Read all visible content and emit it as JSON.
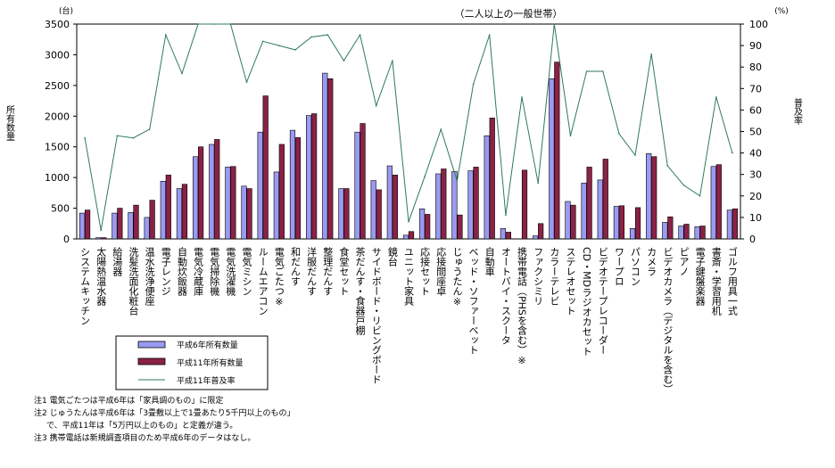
{
  "chart_data": {
    "type": "bar",
    "title": "（二人以上の一般世帯）",
    "left_axis": {
      "unit": "(台)",
      "title": "所有数量",
      "ylim": [
        0,
        3500
      ],
      "ticks": [
        "0",
        "500",
        "1000",
        "1500",
        "2000",
        "2500",
        "3000",
        "3500"
      ]
    },
    "right_axis": {
      "unit": "(%)",
      "title": "普及率",
      "ylim": [
        0,
        100
      ],
      "ticks": [
        "0",
        "10",
        "20",
        "30",
        "40",
        "50",
        "60",
        "70",
        "80",
        "90",
        "100"
      ]
    },
    "categories": [
      "システムキッチン",
      "太陽熱温水器",
      "給湯器",
      "洗髪洗面化粧台",
      "温水洗浄便座",
      "電子レンジ",
      "自動炊飯器",
      "電気冷蔵庫",
      "電気掃除機",
      "電気洗濯機",
      "電気ミシン",
      "ルームエアコン",
      "電気ごたつ※",
      "和だんす",
      "洋服だんす",
      "整理だんす",
      "食堂セット",
      "茶だんす・食器戸棚",
      "サイドボード・リビングボード",
      "鏡台",
      "ユニット家具",
      "応接セット",
      "応接間座卓",
      "じゅうたん※",
      "ベッド・ソファーベット",
      "自動車",
      "オートバイ・スクータ",
      "携帯電話（PHSを含む）※",
      "ファクシミリ",
      "カラーテレビ",
      "ステレオセット",
      "CD・MDラジオカセット",
      "ビデオテープレコーダー",
      "ワープロ",
      "パソコン",
      "カメラ",
      "ビデオカメラ（デジタルを含む）",
      "ピアノ",
      "電子鍵盤楽器",
      "書斎・学習用机",
      "ゴルフ用具一式"
    ],
    "series": [
      {
        "name": "平成6年所有数量",
        "kind": "bar",
        "axis": "left",
        "color": "#9a9af2",
        "values": [
          420,
          20,
          420,
          430,
          350,
          940,
          820,
          1340,
          1540,
          1170,
          860,
          1740,
          1090,
          1770,
          2010,
          2700,
          820,
          1740,
          950,
          1190,
          60,
          490,
          1060,
          1100,
          1110,
          1680,
          170,
          0,
          50,
          2610,
          610,
          910,
          960,
          530,
          170,
          1390,
          270,
          210,
          200,
          1180,
          470
        ]
      },
      {
        "name": "平成11年所有数量",
        "kind": "bar",
        "axis": "left",
        "color": "#8a2246",
        "values": [
          470,
          20,
          500,
          550,
          630,
          1040,
          890,
          1500,
          1620,
          1180,
          820,
          2330,
          1540,
          1650,
          2040,
          2610,
          820,
          1880,
          800,
          1040,
          120,
          400,
          1140,
          390,
          1170,
          1970,
          110,
          1120,
          250,
          2880,
          550,
          1170,
          1300,
          540,
          510,
          1340,
          360,
          240,
          210,
          1210,
          490
        ]
      },
      {
        "name": "平成11年普及率",
        "kind": "line",
        "axis": "right",
        "color": "#2f7a5a",
        "values": [
          47,
          4,
          48,
          47,
          51,
          95,
          77,
          100,
          100,
          100,
          73,
          92,
          90,
          88,
          94,
          95,
          83,
          95,
          62,
          83,
          8,
          29,
          51,
          27,
          72,
          95,
          11,
          66,
          26,
          100,
          48,
          78,
          78,
          49,
          39,
          86,
          34,
          25,
          20,
          66,
          40
        ]
      }
    ],
    "notes": [
      "注1 電気ごたつは平成6年は「家具調のもの」に限定",
      "注2 じゅうたんは平成6年は「3畳敷以上で1畳あたり5千円以上のもの」",
      "で、平成11年は「5万円以上のもの」と定義が違う。",
      "注3 携帯電話は新規調査項目のため平成6年のデータはなし。"
    ]
  }
}
